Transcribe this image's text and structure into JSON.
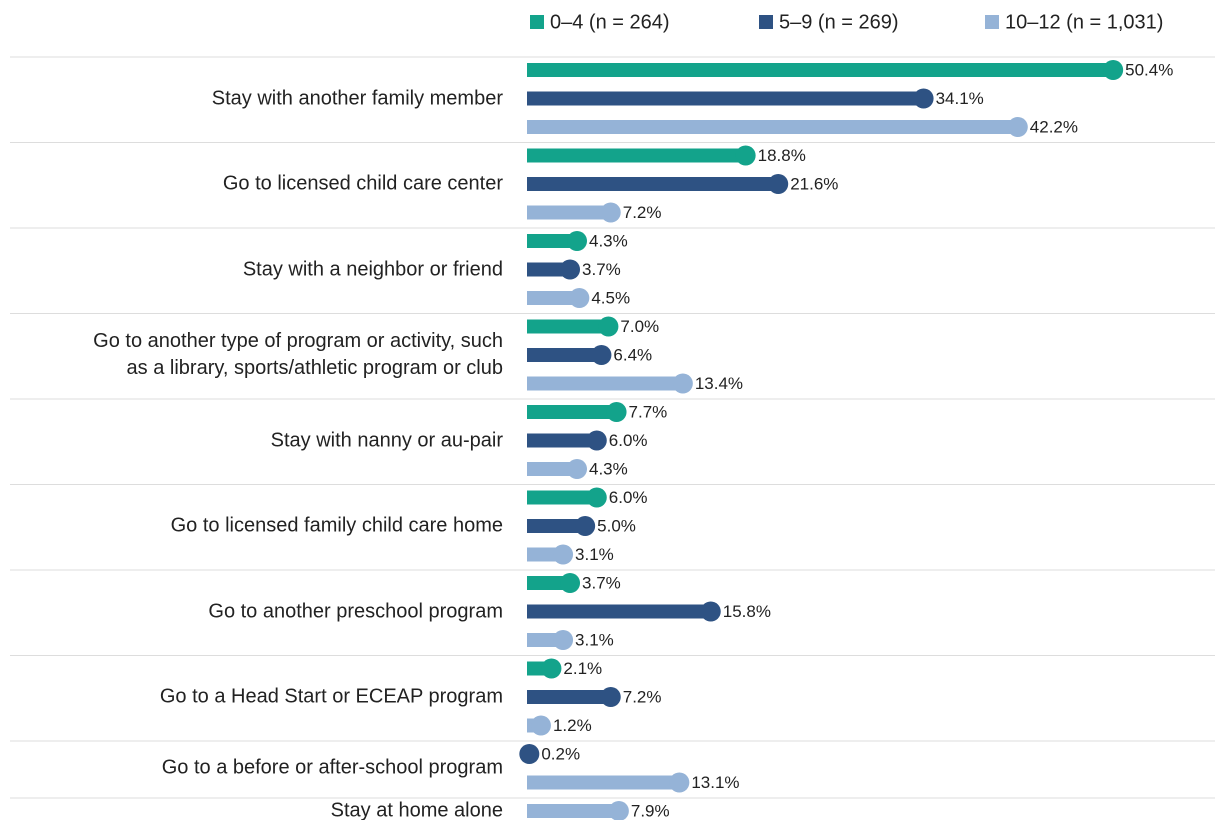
{
  "chart_data": {
    "type": "lollipop-bar",
    "categories": [
      "Stay with another family member",
      "Go to licensed child care center",
      "Stay with a neighbor or friend",
      "Go to another type of program or activity, such\nas a library, sports/athletic program or club",
      "Stay with nanny or au-pair",
      "Go to licensed family child care home",
      "Go to another preschool program",
      "Go to a Head Start or ECEAP program",
      "Go to a before or after-school program",
      "Stay at home alone"
    ],
    "series": [
      {
        "name": "0–4 (n = 264)",
        "color": "#13a38b",
        "values": [
          50.4,
          18.8,
          4.3,
          7.0,
          7.7,
          6.0,
          3.7,
          2.1,
          null,
          null
        ],
        "value_labels": [
          "50.4%",
          "18.8%",
          "4.3%",
          "7.0%",
          "7.7%",
          "6.0%",
          "3.7%",
          "2.1%",
          null,
          null
        ]
      },
      {
        "name": "5–9 (n = 269)",
        "color": "#2e5283",
        "values": [
          34.1,
          21.6,
          3.7,
          6.4,
          6.0,
          5.0,
          15.8,
          7.2,
          0.2,
          null
        ],
        "value_labels": [
          "34.1%",
          "21.6%",
          "3.7%",
          "6.4%",
          "6.0%",
          "5.0%",
          "15.8%",
          "7.2%",
          "0.2%",
          null
        ]
      },
      {
        "name": "10–12 (n = 1,031)",
        "color": "#95b3d7",
        "values": [
          42.2,
          7.2,
          4.5,
          13.4,
          4.3,
          3.1,
          3.1,
          1.2,
          13.1,
          7.9
        ],
        "value_labels": [
          "42.2%",
          "7.2%",
          "4.5%",
          "13.4%",
          "4.3%",
          "3.1%",
          "3.1%",
          "1.2%",
          "13.1%",
          "7.9%"
        ]
      }
    ],
    "xlim": [
      0,
      55
    ],
    "legend": "top"
  }
}
